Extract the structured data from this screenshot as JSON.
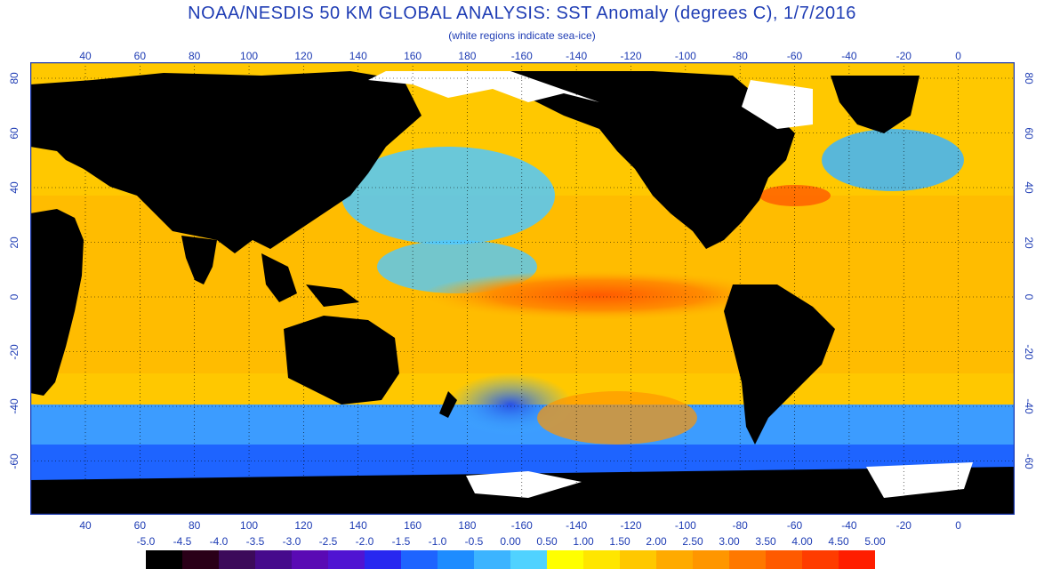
{
  "title": "NOAA/NESDIS 50 KM GLOBAL ANALYSIS: SST Anomaly (degrees C), 1/7/2016",
  "subtitle": "(white regions indicate sea-ice)",
  "longitude_ticks": [
    "40",
    "60",
    "80",
    "100",
    "120",
    "140",
    "160",
    "180",
    "-160",
    "-140",
    "-120",
    "-100",
    "-80",
    "-60",
    "-40",
    "-20",
    "0"
  ],
  "latitude_ticks": [
    "80",
    "60",
    "40",
    "20",
    "0",
    "-20",
    "-40",
    "-60"
  ],
  "colorbar": {
    "labels": [
      "-5.0",
      "-4.5",
      "-4.0",
      "-3.5",
      "-3.0",
      "-2.5",
      "-2.0",
      "-1.5",
      "-1.0",
      "-0.5",
      "0.00",
      "0.50",
      "1.00",
      "1.50",
      "2.00",
      "2.50",
      "3.00",
      "3.50",
      "4.00",
      "4.50",
      "5.00"
    ],
    "colors": [
      "#000000",
      "#2a0018",
      "#3c0a5a",
      "#460a8c",
      "#5a0ab4",
      "#5014d2",
      "#2828f0",
      "#1e64ff",
      "#1e8cff",
      "#3cb4ff",
      "#50d2ff",
      "#ffff00",
      "#ffe600",
      "#ffc800",
      "#ffaa00",
      "#ff9600",
      "#ff7800",
      "#ff5a00",
      "#ff3c00",
      "#ff1e00"
    ]
  },
  "colors": {
    "land": "#000000",
    "ice": "#ffffff",
    "axis": "#1e3cb4"
  }
}
